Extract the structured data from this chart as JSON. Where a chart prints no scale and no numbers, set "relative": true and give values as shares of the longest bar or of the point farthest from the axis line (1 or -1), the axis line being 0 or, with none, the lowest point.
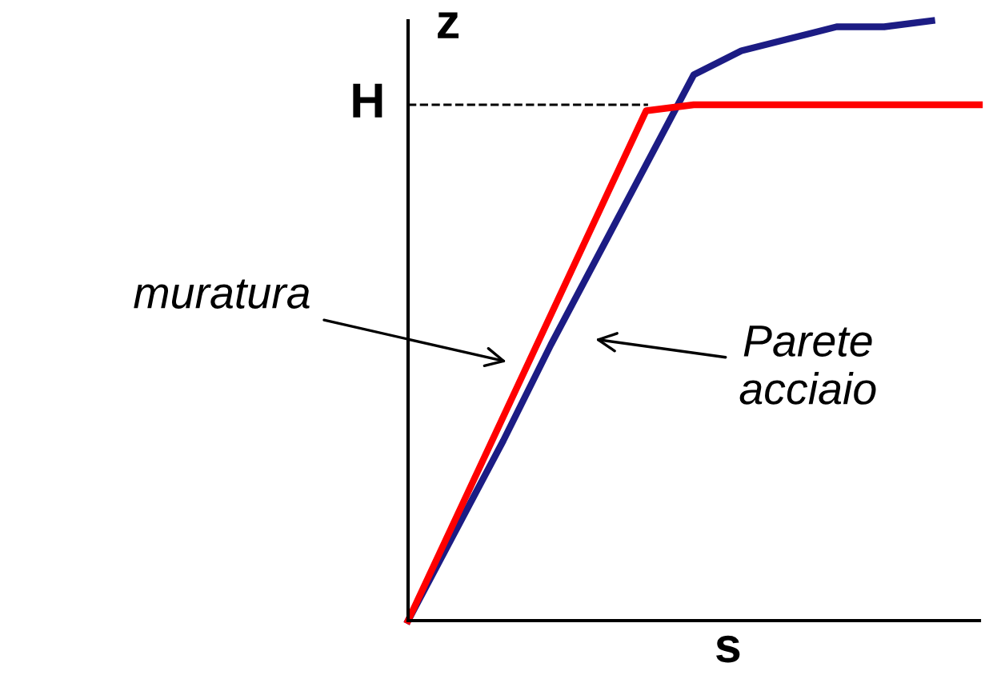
{
  "chart_data": {
    "type": "line",
    "relative": true,
    "xlabel": "s",
    "ylabel": "z",
    "categories": [
      null,
      null,
      null,
      null,
      null,
      null,
      null,
      null,
      null,
      null,
      null,
      null,
      null
    ],
    "series": [
      {
        "color": "#1c1c84",
        "values": [
          0,
          0.15,
          0.3,
          0.46,
          0.61,
          0.76,
          0.91,
          0.95,
          0.97,
          0.99,
          0.99,
          1.0,
          null
        ]
      },
      {
        "color": "#ff0000",
        "values": [
          0,
          0.17,
          0.34,
          0.51,
          0.68,
          0.85,
          0.86,
          0.86,
          0.86,
          0.86,
          0.86,
          0.86,
          0.86
        ]
      }
    ],
    "ref_lines": [
      {
        "axis": "y",
        "value": 0.86,
        "label": "H",
        "line_style": "dashed",
        "color": "#000000"
      }
    ],
    "annotations": [
      "muratura",
      "Parete\nacciaio"
    ],
    "grid": false,
    "legend": false,
    "marker": "none",
    "line_style": "solid"
  }
}
